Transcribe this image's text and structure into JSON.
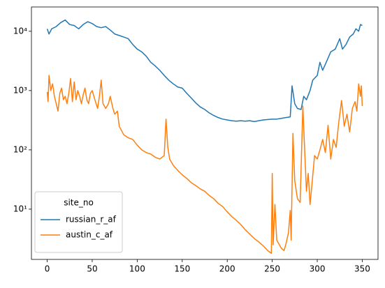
{
  "chart_data": {
    "type": "line",
    "log_y": true,
    "grid": false,
    "legend_title": "site_no",
    "legend_corner": "lower left",
    "xlim": [
      -17.5,
      367.5
    ],
    "xticks": [
      0,
      50,
      100,
      150,
      200,
      250,
      300,
      350
    ],
    "ylim": [
      1.42,
      25700
    ],
    "yticks": [
      {
        "value": 10,
        "label": "10¹"
      },
      {
        "value": 100,
        "label": "10²"
      },
      {
        "value": 1000,
        "label": "10³"
      },
      {
        "value": 10000,
        "label": "10⁴"
      }
    ],
    "series": [
      {
        "name": "russian_r_af",
        "color": "#1f77b4",
        "x": [
          0,
          2,
          5,
          10,
          15,
          20,
          25,
          30,
          35,
          40,
          45,
          50,
          55,
          60,
          65,
          70,
          75,
          80,
          85,
          90,
          95,
          100,
          105,
          110,
          115,
          120,
          125,
          130,
          135,
          140,
          145,
          150,
          155,
          160,
          165,
          170,
          175,
          180,
          185,
          190,
          195,
          200,
          205,
          210,
          215,
          220,
          225,
          230,
          235,
          240,
          245,
          250,
          255,
          260,
          265,
          270,
          272,
          275,
          278,
          282,
          285,
          288,
          292,
          295,
          300,
          303,
          306,
          310,
          315,
          320,
          325,
          328,
          332,
          336,
          340,
          343,
          346,
          348,
          350
        ],
        "values": [
          11000,
          9000,
          11000,
          12000,
          14000,
          15500,
          13000,
          12500,
          11000,
          13000,
          14500,
          13500,
          12000,
          11500,
          12000,
          10500,
          9000,
          8500,
          8000,
          7500,
          6000,
          5000,
          4500,
          3800,
          3000,
          2600,
          2200,
          1800,
          1500,
          1300,
          1150,
          1100,
          900,
          750,
          620,
          530,
          480,
          420,
          380,
          350,
          330,
          320,
          310,
          305,
          310,
          305,
          310,
          300,
          310,
          320,
          325,
          330,
          330,
          340,
          350,
          360,
          1200,
          600,
          500,
          480,
          800,
          700,
          1000,
          1500,
          1800,
          3000,
          2200,
          3000,
          4500,
          5000,
          7500,
          5000,
          6000,
          8000,
          9000,
          11000,
          10000,
          13000,
          12500
        ]
      },
      {
        "name": "austin_c_af",
        "color": "#ff7f0e",
        "x": [
          0,
          1,
          2,
          4,
          6,
          8,
          10,
          12,
          14,
          16,
          18,
          20,
          22,
          24,
          26,
          28,
          30,
          32,
          34,
          36,
          38,
          40,
          42,
          44,
          46,
          48,
          50,
          53,
          56,
          58,
          60,
          62,
          65,
          68,
          70,
          73,
          75,
          78,
          80,
          85,
          90,
          95,
          100,
          105,
          110,
          115,
          120,
          125,
          130,
          132,
          134,
          136,
          140,
          145,
          150,
          155,
          160,
          165,
          170,
          175,
          180,
          185,
          190,
          195,
          200,
          205,
          210,
          215,
          220,
          225,
          230,
          235,
          240,
          245,
          249,
          250,
          251,
          253,
          255,
          258,
          260,
          263,
          265,
          268,
          270,
          271,
          273,
          275,
          278,
          281,
          284,
          286,
          288,
          290,
          292,
          294,
          297,
          300,
          303,
          306,
          309,
          312,
          315,
          318,
          321,
          324,
          327,
          330,
          333,
          336,
          339,
          342,
          344,
          346,
          348,
          349,
          350
        ],
        "values": [
          950,
          650,
          1800,
          1000,
          1300,
          800,
          600,
          450,
          900,
          1100,
          700,
          800,
          600,
          900,
          1600,
          650,
          1400,
          700,
          1000,
          800,
          600,
          850,
          1100,
          700,
          600,
          900,
          1000,
          700,
          500,
          800,
          1500,
          600,
          500,
          600,
          800,
          500,
          400,
          450,
          250,
          180,
          160,
          150,
          120,
          100,
          90,
          85,
          75,
          70,
          80,
          330,
          110,
          70,
          55,
          45,
          38,
          33,
          28,
          25,
          22,
          20,
          17,
          15,
          12.5,
          11,
          9,
          7.5,
          6.5,
          5.5,
          4.5,
          3.8,
          3.2,
          2.8,
          2.4,
          2.0,
          1.8,
          40,
          2.5,
          12,
          3,
          2.5,
          2.2,
          2.0,
          2.5,
          4,
          9.5,
          3,
          190,
          30,
          15,
          13,
          550,
          100,
          20,
          40,
          12,
          25,
          80,
          70,
          100,
          150,
          90,
          260,
          70,
          150,
          110,
          300,
          680,
          250,
          400,
          200,
          500,
          650,
          450,
          1300,
          800,
          1200,
          550
        ]
      }
    ]
  }
}
